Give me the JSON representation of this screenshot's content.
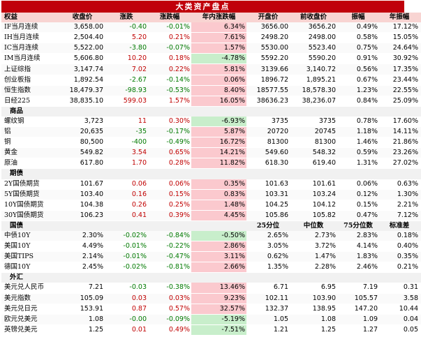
{
  "title": "大类资产盘点",
  "header": [
    "权益",
    "收盘价",
    "涨跌",
    "涨跌幅",
    "年内涨跌幅",
    "开盘价",
    "前收盘价",
    "振幅",
    "年振幅"
  ],
  "equity": [
    [
      "IF当月连续",
      "3,658.00",
      "-0.40",
      "-0.01%",
      "6.34%",
      "3656.00",
      "3656.20",
      "0.49%",
      "17.12%"
    ],
    [
      "IH当月连续",
      "2,504.40",
      "5.20",
      "0.21%",
      "7.61%",
      "2498.20",
      "2498.00",
      "0.58%",
      "15.05%"
    ],
    [
      "IC当月连续",
      "5,522.00",
      "-3.80",
      "-0.07%",
      "1.57%",
      "5530.00",
      "5523.40",
      "0.75%",
      "24.64%"
    ],
    [
      "IM当月连续",
      "5,606.80",
      "10.20",
      "0.18%",
      "-4.78%",
      "5592.20",
      "5590.20",
      "0.91%",
      "30.92%"
    ],
    [
      "上证综指",
      "3,147.74",
      "7.02",
      "0.22%",
      "5.81%",
      "3139.66",
      "3,140.72",
      "0.56%",
      "17.35%"
    ],
    [
      "创业板指",
      "1,892.54",
      "-2.67",
      "-0.14%",
      "0.06%",
      "1896.72",
      "1,895.21",
      "0.67%",
      "23.44%"
    ],
    [
      "恒生指数",
      "18,479.37",
      "-98.93",
      "-0.53%",
      "8.40%",
      "18577.55",
      "18,578.30",
      "1.23%",
      "22.55%"
    ],
    [
      "日经225",
      "38,835.10",
      "599.03",
      "1.57%",
      "16.05%",
      "38636.23",
      "38,236.07",
      "0.84%",
      "25.09%"
    ]
  ],
  "commodity_header": "商品",
  "commodity": [
    [
      "螺纹钢",
      "3,723",
      "11",
      "0.30%",
      "-6.93%",
      "3735",
      "3735",
      "0.78%",
      "17.60%"
    ],
    [
      "铝",
      "20,635",
      "-35",
      "-0.17%",
      "5.87%",
      "20720",
      "20745",
      "1.18%",
      "14.11%"
    ],
    [
      "铜",
      "80,500",
      "-400",
      "-0.49%",
      "16.72%",
      "81300",
      "81300",
      "1.46%",
      "21.86%"
    ],
    [
      "黄金",
      "549.82",
      "3.54",
      "0.65%",
      "14.21%",
      "549.60",
      "548.32",
      "0.59%",
      "23.26%"
    ],
    [
      "原油",
      "617.80",
      "1.70",
      "0.28%",
      "11.82%",
      "618.30",
      "619.40",
      "1.31%",
      "27.02%"
    ]
  ],
  "bond_header": "期债",
  "bond": [
    [
      "2Y国债期货",
      "101.67",
      "0.06",
      "0.06%",
      "0.35%",
      "101.63",
      "101.61",
      "0.06%",
      "0.63%"
    ],
    [
      "5Y国债期货",
      "103.40",
      "0.16",
      "0.15%",
      "0.83%",
      "103.31",
      "103.24",
      "0.12%",
      "1.30%"
    ],
    [
      "10Y国债期货",
      "104.38",
      "0.26",
      "0.25%",
      "1.48%",
      "104.25",
      "104.12",
      "0.15%",
      "2.21%"
    ],
    [
      "30Y国债期货",
      "106.23",
      "0.41",
      "0.39%",
      "4.45%",
      "105.86",
      "105.82",
      "0.47%",
      "7.12%"
    ]
  ],
  "rate_header": [
    "国债",
    "25分位",
    "中位数",
    "75分位数",
    "标准差"
  ],
  "rate": [
    [
      "中债10Y",
      "2.30%",
      "-0.02%",
      "-0.84%",
      "-0.50%",
      "2.65%",
      "2.73%",
      "2.83%",
      "0.18%"
    ],
    [
      "美国10Y",
      "4.49%",
      "-0.01%",
      "-0.22%",
      "2.86%",
      "3.05%",
      "3.72%",
      "4.14%",
      "0.40%"
    ],
    [
      "美国TIPS",
      "2.14%",
      "-0.01%",
      "-0.47%",
      "3.11%",
      "0.62%",
      "1.47%",
      "1.83%",
      "0.35%"
    ],
    [
      "德国10Y",
      "2.45%",
      "-0.02%",
      "-0.81%",
      "2.66%",
      "1.35%",
      "2.28%",
      "2.46%",
      "0.21%"
    ]
  ],
  "fx_header": "外汇",
  "fx": [
    [
      "美元兑人民币",
      "7.21",
      "-0.03",
      "-0.38%",
      "13.46%",
      "6.71",
      "6.95",
      "7.19",
      "0.31"
    ],
    [
      "美元指数",
      "105.09",
      "0.03",
      "0.03%",
      "9.23%",
      "102.11",
      "103.90",
      "105.57",
      "3.58"
    ],
    [
      "美元兑日元",
      "153.91",
      "0.87",
      "0.57%",
      "32.57%",
      "132.37",
      "138.95",
      "147.20",
      "10.44"
    ],
    [
      "欧元兑美元",
      "1.08",
      "-0.00",
      "-0.09%",
      "-5.19%",
      "1.05",
      "1.08",
      "1.09",
      "0.04"
    ],
    [
      "英镑兑美元",
      "1.25",
      "0.01",
      "0.49%",
      "-7.51%",
      "1.21",
      "1.25",
      "1.27",
      "0.05"
    ]
  ],
  "colors": {
    "title_bg": "#c0000b",
    "up_bg": "#fbc9ce",
    "down_bg": "#c8eecb",
    "up_text": "#c00000",
    "down_text": "#007a00"
  }
}
